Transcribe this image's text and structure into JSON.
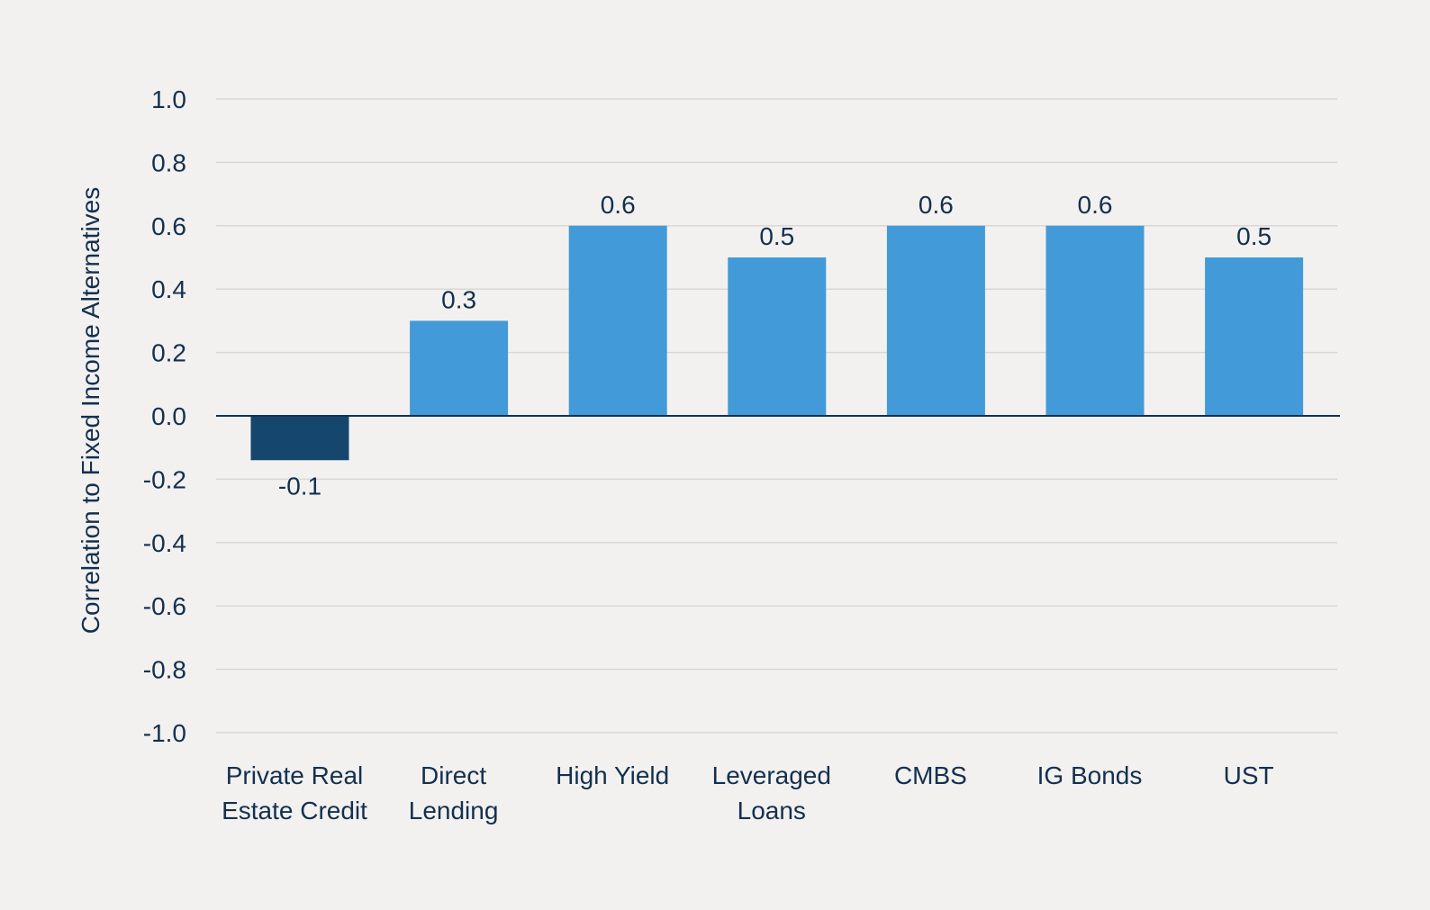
{
  "chart_data": {
    "type": "bar",
    "title": "",
    "xlabel": "",
    "ylabel": "Correlation to Fixed Income Alternatives",
    "ylim": [
      -1.0,
      1.0
    ],
    "yticks": [
      "1.0",
      "0.8",
      "0.6",
      "0.4",
      "0.2",
      "0.0",
      "-0.2",
      "-0.4",
      "-0.6",
      "-0.8",
      "-1.0"
    ],
    "categories": [
      [
        "Private Real",
        "Estate Credit"
      ],
      [
        "Direct",
        "Lending"
      ],
      [
        "High Yield"
      ],
      [
        "Leveraged",
        "Loans"
      ],
      [
        "CMBS"
      ],
      [
        "IG Bonds"
      ],
      [
        "UST"
      ]
    ],
    "values": [
      -0.14,
      0.3,
      0.6,
      0.5,
      0.6,
      0.6,
      0.5
    ],
    "data_labels": [
      "-0.1",
      "0.3",
      "0.6",
      "0.5",
      "0.6",
      "0.6",
      "0.5"
    ],
    "grid": true,
    "colors": {
      "negative": "#15476e",
      "positive": "#439ad8",
      "text": "#14304f",
      "grid": "#d9d8d5",
      "background": "#f2f1ef"
    }
  }
}
